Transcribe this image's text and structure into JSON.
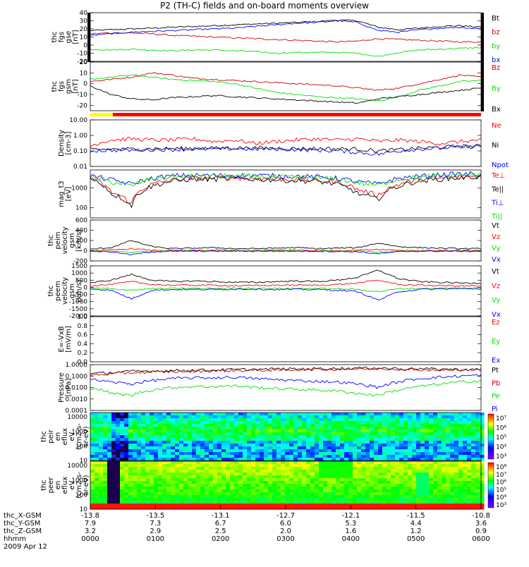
{
  "title": "P2 (TH-C) fields and on-board moments overview",
  "date": "2009 Apr 12",
  "colors": {
    "black": "#000000",
    "red": "#ff0000",
    "green": "#00e000",
    "blue": "#0000ff",
    "yellow": "#ffff00",
    "darkred": "#cc0000"
  },
  "chart_data": [
    {
      "id": "fgs-gse",
      "type": "line",
      "ylabel_lines": [
        "thc",
        "fgs",
        "gse",
        "[nT]"
      ],
      "ylim": [
        -20,
        40
      ],
      "yticks": [
        "40",
        "30",
        "20",
        "10",
        "0",
        "-10",
        "-20"
      ],
      "series": [
        {
          "name": "Bt",
          "color": "#000000",
          "values": [
            18,
            19,
            20,
            21,
            22,
            23,
            24,
            25,
            26,
            27,
            28,
            29,
            31,
            30,
            22,
            19,
            21,
            23,
            24,
            22
          ]
        },
        {
          "name": "bz",
          "color": "#cc0000",
          "values": [
            14,
            15,
            15,
            14,
            12,
            11,
            10,
            9,
            8,
            7,
            6,
            5,
            4,
            5,
            8,
            7,
            6,
            5,
            4,
            4
          ]
        },
        {
          "name": "by",
          "color": "#00e000",
          "values": [
            -5,
            -6,
            -5,
            -6,
            -7,
            -6,
            -6,
            -7,
            -8,
            -10,
            -9,
            -9,
            -9,
            -10,
            -14,
            -9,
            -6,
            -5,
            -4,
            -3
          ]
        },
        {
          "name": "bx",
          "color": "#0000ff",
          "values": [
            12,
            14,
            16,
            17,
            18,
            19,
            20,
            21,
            23,
            25,
            27,
            28,
            30,
            28,
            18,
            16,
            19,
            21,
            22,
            20
          ]
        }
      ]
    },
    {
      "id": "fgs-gsm",
      "type": "line",
      "ylabel_lines": [
        "thc",
        "fgs",
        "gsm",
        "[nT]"
      ],
      "ylim": [
        -25,
        20
      ],
      "yticks": [
        "20",
        "10",
        "0",
        "-10",
        "-20"
      ],
      "series": [
        {
          "name": "Bz",
          "color": "#cc0000",
          "values": [
            2,
            4,
            6,
            10,
            8,
            5,
            4,
            3,
            2,
            1,
            0,
            -1,
            -2,
            -4,
            -6,
            -4,
            0,
            4,
            8,
            6
          ]
        },
        {
          "name": "By",
          "color": "#00e000",
          "values": [
            4,
            6,
            8,
            6,
            4,
            3,
            2,
            0,
            -4,
            -8,
            -10,
            -12,
            -13,
            -14,
            -16,
            -12,
            -6,
            -2,
            2,
            3
          ]
        },
        {
          "name": "Bx",
          "color": "#000000",
          "values": [
            -2,
            -10,
            -14,
            -15,
            -13,
            -12,
            -11,
            -12,
            -13,
            -14,
            -15,
            -16,
            -17,
            -18,
            -14,
            -12,
            -10,
            -8,
            -6,
            -4
          ]
        }
      ]
    },
    {
      "id": "density",
      "type": "line",
      "yscale": "log",
      "ylabel_lines": [
        "Density",
        "[cm-3]"
      ],
      "ylim": [
        0.01,
        10
      ],
      "yticks": [
        "10.00",
        "1.00",
        "0.10",
        "0.01"
      ],
      "series": [
        {
          "name": "Ne",
          "color": "#ff0000",
          "values": [
            0.2,
            0.5,
            0.6,
            0.5,
            0.5,
            0.6,
            0.4,
            0.5,
            0.3,
            0.4,
            0.5,
            0.6,
            0.5,
            0.6,
            0.4,
            0.5,
            0.4,
            0.3,
            0.4,
            0.5
          ]
        },
        {
          "name": "Ni",
          "color": "#000000",
          "values": [
            0.12,
            0.13,
            0.13,
            0.14,
            0.14,
            0.15,
            0.15,
            0.16,
            0.15,
            0.15,
            0.14,
            0.14,
            0.14,
            0.13,
            0.1,
            0.12,
            0.15,
            0.17,
            0.2,
            0.2
          ]
        },
        {
          "name": "Npot",
          "color": "#0000ff",
          "values": [
            0.1,
            0.11,
            0.11,
            0.12,
            0.12,
            0.13,
            0.13,
            0.14,
            0.13,
            0.13,
            0.12,
            0.11,
            0.1,
            0.08,
            0.06,
            0.1,
            0.13,
            0.15,
            0.18,
            0.2
          ]
        }
      ]
    },
    {
      "id": "temperature",
      "type": "line",
      "yscale": "log",
      "ylabel_lines": [
        "mag_t3",
        "[eV]"
      ],
      "ylim": [
        30,
        8000
      ],
      "yticks": [
        "1000",
        "100"
      ],
      "series": [
        {
          "name": "Te⊥",
          "color": "#ff0000",
          "values": [
            3000,
            600,
            150,
            1500,
            2500,
            3000,
            3000,
            3200,
            3000,
            2800,
            2600,
            2400,
            2000,
            800,
            400,
            1500,
            2500,
            3000,
            3500,
            4000
          ]
        },
        {
          "name": "Te||",
          "color": "#000000",
          "values": [
            2800,
            500,
            120,
            1200,
            2200,
            2700,
            2700,
            2900,
            2700,
            2500,
            2300,
            2100,
            1500,
            500,
            250,
            1200,
            2200,
            2700,
            3200,
            3600
          ]
        },
        {
          "name": "Ti⊥",
          "color": "#0000ff",
          "values": [
            4000,
            2500,
            1500,
            3000,
            4000,
            4200,
            4200,
            4300,
            4200,
            4000,
            3800,
            3500,
            3000,
            2000,
            1500,
            3000,
            3800,
            4500,
            5000,
            5000
          ]
        },
        {
          "name": "Ti||",
          "color": "#00e000",
          "values": [
            3500,
            2000,
            1200,
            2800,
            3600,
            3800,
            3800,
            3900,
            3800,
            3600,
            3400,
            3200,
            2700,
            1800,
            1300,
            2700,
            3400,
            4000,
            4500,
            4500
          ]
        }
      ]
    },
    {
      "id": "peim-velocity",
      "type": "line",
      "ylabel_lines": [
        "thc",
        "peim",
        "velocity",
        "gsm",
        "[km/s]"
      ],
      "ylim": [
        -200,
        600
      ],
      "yticks": [
        "600",
        "400",
        "200",
        "0",
        "-200"
      ],
      "series": [
        {
          "name": "Vt",
          "color": "#000000",
          "values": [
            30,
            60,
            200,
            80,
            40,
            50,
            60,
            40,
            40,
            50,
            60,
            40,
            50,
            60,
            150,
            80,
            60,
            50,
            40,
            40
          ]
        },
        {
          "name": "Vz",
          "color": "#ff0000",
          "values": [
            5,
            10,
            40,
            10,
            5,
            5,
            10,
            5,
            5,
            10,
            10,
            5,
            5,
            10,
            30,
            10,
            5,
            5,
            5,
            5
          ]
        },
        {
          "name": "Vy",
          "color": "#00e000",
          "values": [
            -5,
            -10,
            -30,
            -10,
            -5,
            -5,
            -5,
            -5,
            -5,
            -5,
            -5,
            -5,
            -10,
            -10,
            -30,
            -10,
            -5,
            -5,
            -5,
            -5
          ]
        },
        {
          "name": "Vx",
          "color": "#0000ff",
          "values": [
            -10,
            -20,
            -80,
            -20,
            -10,
            -10,
            -10,
            -10,
            -10,
            -10,
            -10,
            -10,
            -15,
            -20,
            -60,
            -20,
            -10,
            -10,
            -10,
            -10
          ]
        }
      ]
    },
    {
      "id": "peem-velocity",
      "type": "line",
      "ylabel_lines": [
        "thc",
        "peem",
        "velocity",
        "gsm",
        "[km/s]"
      ],
      "ylim": [
        -2000,
        1500
      ],
      "yticks": [
        "1500",
        "1000",
        "500",
        "0",
        "-500",
        "-1000",
        "-1500",
        "-2000"
      ],
      "series": [
        {
          "name": "Vt",
          "color": "#000000",
          "values": [
            300,
            500,
            900,
            500,
            400,
            450,
            400,
            350,
            350,
            400,
            450,
            400,
            500,
            700,
            1200,
            600,
            400,
            350,
            300,
            300
          ]
        },
        {
          "name": "Vz",
          "color": "#ff0000",
          "values": [
            100,
            200,
            400,
            200,
            150,
            150,
            150,
            120,
            120,
            150,
            150,
            150,
            200,
            300,
            500,
            200,
            150,
            120,
            100,
            100
          ]
        },
        {
          "name": "Vy",
          "color": "#00e000",
          "values": [
            -50,
            -100,
            -200,
            -100,
            -80,
            -80,
            -80,
            -60,
            -60,
            -80,
            -80,
            -80,
            -100,
            -150,
            -300,
            -100,
            -80,
            -60,
            -50,
            -50
          ]
        },
        {
          "name": "Vx",
          "color": "#0000ff",
          "values": [
            -100,
            -200,
            -800,
            -200,
            -150,
            -150,
            -150,
            -120,
            -120,
            -150,
            -150,
            -150,
            -200,
            -300,
            -900,
            -300,
            -150,
            -120,
            -100,
            -100
          ]
        }
      ]
    },
    {
      "id": "efield",
      "type": "line",
      "ylabel_lines": [
        "E=-VxB",
        "[mV/m]"
      ],
      "ylim": [
        0,
        1
      ],
      "yticks": [
        "1.0",
        "0.8",
        "0.6",
        "0.4",
        "0.2",
        "0.0"
      ],
      "series": [
        {
          "name": "Ez",
          "color": "#ff0000",
          "values": []
        },
        {
          "name": "Ey",
          "color": "#00e000",
          "values": []
        },
        {
          "name": "Ex",
          "color": "#0000ff",
          "values": []
        }
      ]
    },
    {
      "id": "pressure",
      "type": "line",
      "yscale": "log",
      "ylabel_lines": [
        "Pressure",
        "[nPa]"
      ],
      "ylim": [
        0.0001,
        1
      ],
      "yticks": [
        "1.0000",
        "0.1000",
        "0.0100",
        "0.0010",
        "0.0001"
      ],
      "series": [
        {
          "name": "Pt",
          "color": "#000000",
          "values": [
            0.15,
            0.2,
            0.25,
            0.28,
            0.3,
            0.32,
            0.34,
            0.36,
            0.38,
            0.4,
            0.42,
            0.44,
            0.46,
            0.48,
            0.5,
            0.45,
            0.42,
            0.4,
            0.38,
            0.36
          ]
        },
        {
          "name": "Pb",
          "color": "#cc0000",
          "values": [
            0.12,
            0.15,
            0.2,
            0.22,
            0.24,
            0.26,
            0.28,
            0.3,
            0.32,
            0.34,
            0.36,
            0.38,
            0.4,
            0.42,
            0.44,
            0.4,
            0.36,
            0.34,
            0.32,
            0.3
          ]
        },
        {
          "name": "Pe",
          "color": "#00e000",
          "values": [
            0.01,
            0.003,
            0.002,
            0.006,
            0.01,
            0.012,
            0.012,
            0.014,
            0.01,
            0.008,
            0.007,
            0.006,
            0.005,
            0.003,
            0.002,
            0.006,
            0.012,
            0.02,
            0.03,
            0.04
          ]
        },
        {
          "name": "Pi",
          "color": "#0000ff",
          "values": [
            0.05,
            0.03,
            0.02,
            0.04,
            0.06,
            0.07,
            0.07,
            0.08,
            0.06,
            0.05,
            0.04,
            0.035,
            0.03,
            0.02,
            0.01,
            0.03,
            0.06,
            0.08,
            0.1,
            0.12
          ]
        }
      ]
    },
    {
      "id": "peir-spectrogram",
      "type": "heatmap",
      "ylabel_lines": [
        "thc",
        "peir",
        "en",
        "eflux",
        "eV",
        "(cm2-s-",
        "sr-eV)"
      ],
      "yticks": [
        "10000",
        "1000",
        "100",
        "10"
      ],
      "colorbar_ticks": [
        "10⁷",
        "10⁶",
        "10⁵",
        "10⁴",
        "10³"
      ]
    },
    {
      "id": "peer-spectrogram",
      "type": "heatmap",
      "ylabel_lines": [
        "thc",
        "peer",
        "en",
        "eflux",
        "eV",
        "(cm2-s-",
        "sr-eV)"
      ],
      "yticks": [
        "10000",
        "1000",
        "100",
        "10"
      ],
      "colorbar_ticks": [
        "10⁸",
        "10⁷",
        "10⁶",
        "10⁵",
        "10⁴",
        "10³"
      ]
    }
  ],
  "time_axis": {
    "rows": [
      {
        "label": "thc_X-GSM",
        "values": [
          "-13.8",
          "-13.5",
          "-13.1",
          "-12.7",
          "-12.1",
          "-11.5",
          "-10.8"
        ]
      },
      {
        "label": "thc_Y-GSM",
        "values": [
          "7.9",
          "7.3",
          "6.7",
          "6.0",
          "5.3",
          "4.4",
          "3.6"
        ]
      },
      {
        "label": "thc_Z-GSM",
        "values": [
          "3.2",
          "2.9",
          "2.5",
          "2.0",
          "1.6",
          "1.2",
          "0.9"
        ]
      },
      {
        "label": "hhmm",
        "values": [
          "0000",
          "0100",
          "0200",
          "0300",
          "0400",
          "0500",
          "0600"
        ]
      }
    ]
  }
}
